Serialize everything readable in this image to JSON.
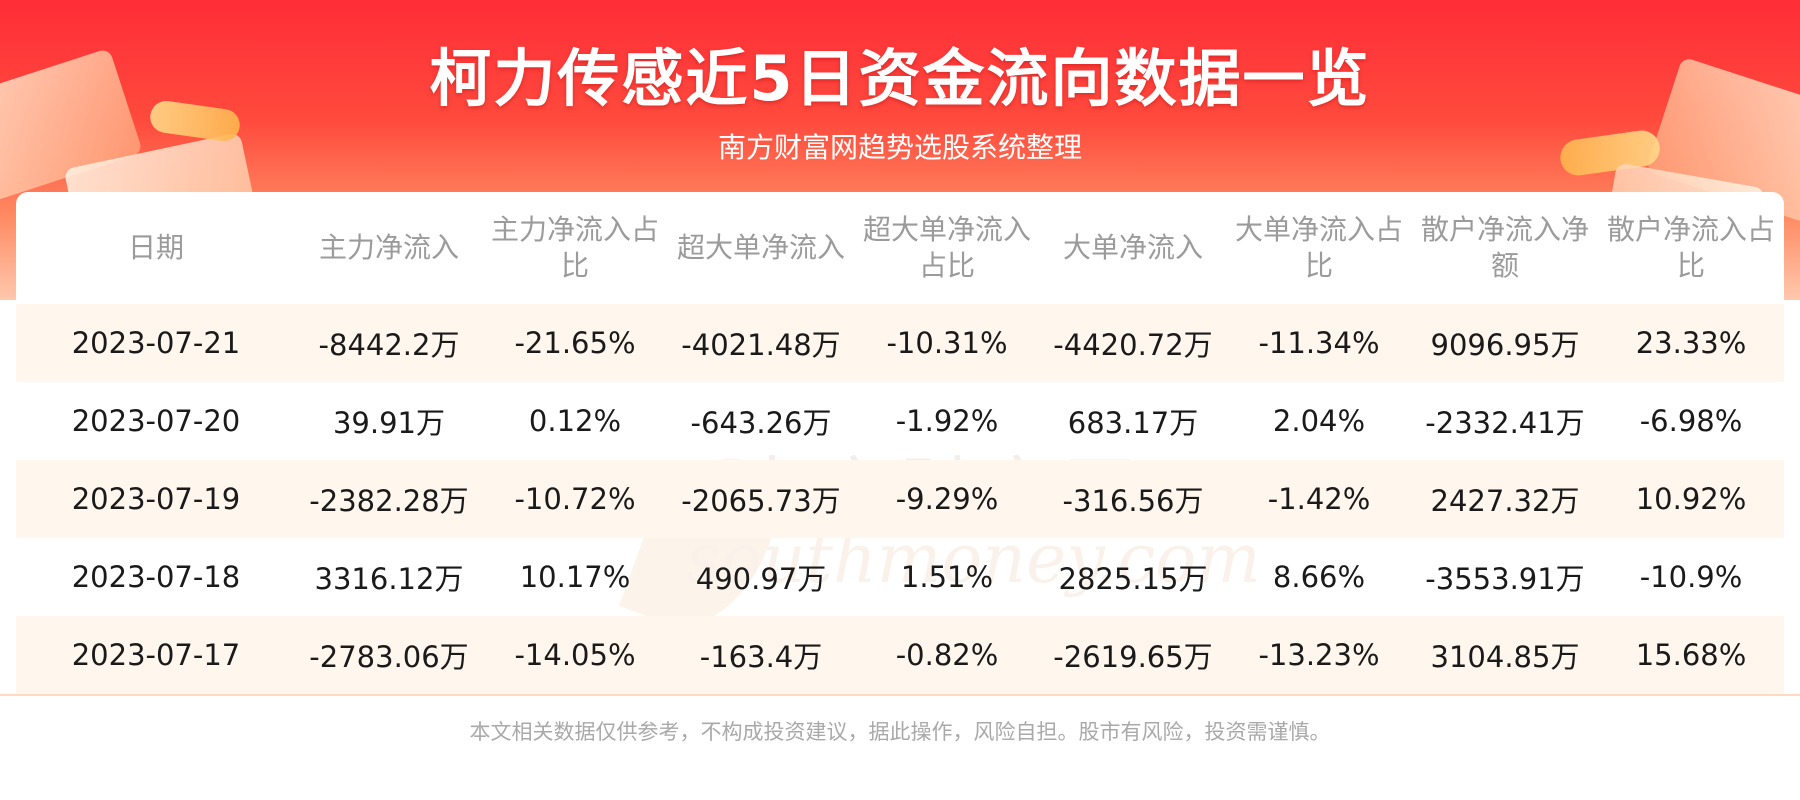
{
  "header": {
    "title": "柯力传感近5日资金流向数据一览",
    "subtitle": "南方财富网趋势选股系统整理"
  },
  "watermark": {
    "cn": "南方财富网",
    "en": "southmoney.com"
  },
  "table": {
    "columns": [
      "日期",
      "主力净流入",
      "主力净流入占比",
      "超大单净流入",
      "超大单净流入占比",
      "大单净流入",
      "大单净流入占比",
      "散户净流入净额",
      "散户净流入占比"
    ],
    "rows": [
      [
        "2023-07-21",
        "-8442.2万",
        "-21.65%",
        "-4021.48万",
        "-10.31%",
        "-4420.72万",
        "-11.34%",
        "9096.95万",
        "23.33%"
      ],
      [
        "2023-07-20",
        "39.91万",
        "0.12%",
        "-643.26万",
        "-1.92%",
        "683.17万",
        "2.04%",
        "-2332.41万",
        "-6.98%"
      ],
      [
        "2023-07-19",
        "-2382.28万",
        "-10.72%",
        "-2065.73万",
        "-9.29%",
        "-316.56万",
        "-1.42%",
        "2427.32万",
        "10.92%"
      ],
      [
        "2023-07-18",
        "3316.12万",
        "10.17%",
        "490.97万",
        "1.51%",
        "2825.15万",
        "8.66%",
        "-3553.91万",
        "-10.9%"
      ],
      [
        "2023-07-17",
        "-2783.06万",
        "-14.05%",
        "-163.4万",
        "-0.82%",
        "-2619.65万",
        "-13.23%",
        "3104.85万",
        "15.68%"
      ]
    ]
  },
  "footer": {
    "disclaimer": "本文相关数据仅供参考，不构成投资建议，据此操作，风险自担。股市有风险，投资需谨慎。"
  },
  "colors": {
    "banner_top": "#ff2d37",
    "row_shade": "#fff6ee",
    "header_text": "#9b9b9b"
  }
}
